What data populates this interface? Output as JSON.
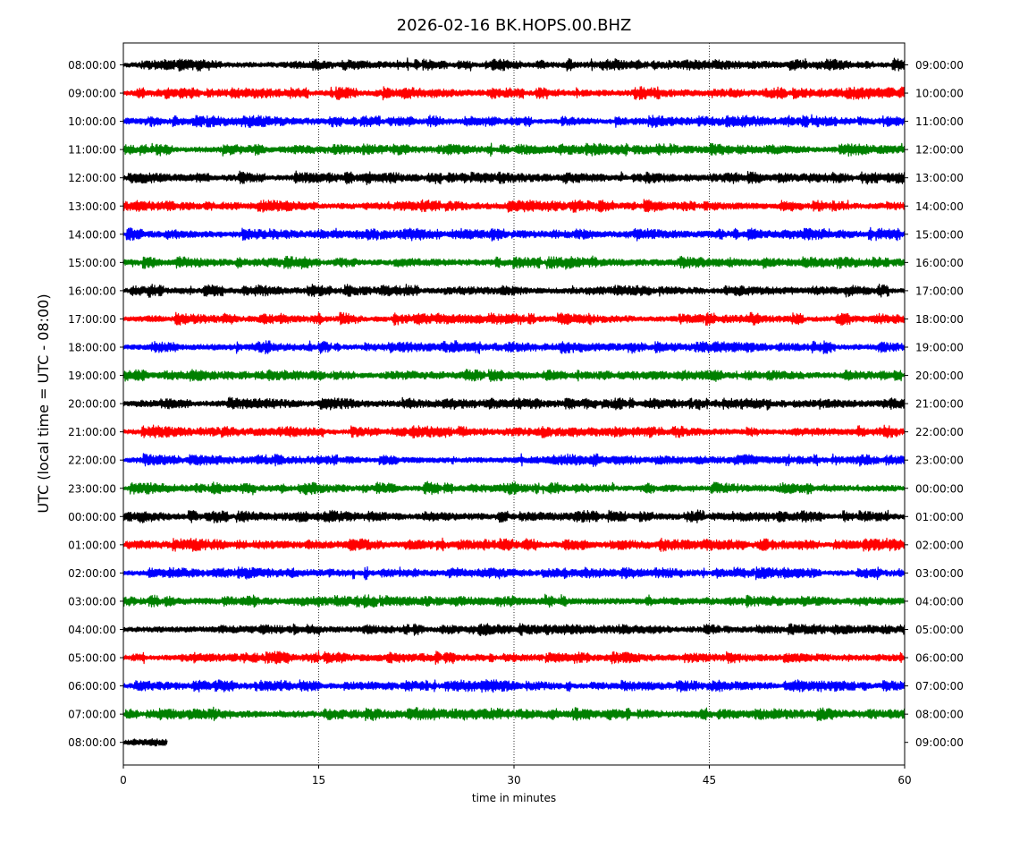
{
  "chart_data": {
    "type": "line",
    "title": "2026-02-16 BK.HOPS.00.BHZ",
    "xlabel": "time in minutes",
    "ylabel": "UTC (local time = UTC - 08:00)",
    "xlim": [
      0,
      60
    ],
    "x_ticks": [
      "0",
      "15",
      "30",
      "45",
      "60"
    ],
    "x_tick_values": [
      0,
      15,
      30,
      45,
      60
    ],
    "grid": "vertical dotted lines at 15, 30, 45",
    "color_cycle": [
      "#000000",
      "#ff0000",
      "#0000ff",
      "#008000"
    ],
    "rows": [
      {
        "left": "08:00:00",
        "right": "09:00:00",
        "minutes": 60
      },
      {
        "left": "09:00:00",
        "right": "10:00:00",
        "minutes": 60
      },
      {
        "left": "10:00:00",
        "right": "11:00:00",
        "minutes": 60
      },
      {
        "left": "11:00:00",
        "right": "12:00:00",
        "minutes": 60
      },
      {
        "left": "12:00:00",
        "right": "13:00:00",
        "minutes": 60
      },
      {
        "left": "13:00:00",
        "right": "14:00:00",
        "minutes": 60
      },
      {
        "left": "14:00:00",
        "right": "15:00:00",
        "minutes": 60
      },
      {
        "left": "15:00:00",
        "right": "16:00:00",
        "minutes": 60
      },
      {
        "left": "16:00:00",
        "right": "17:00:00",
        "minutes": 60
      },
      {
        "left": "17:00:00",
        "right": "18:00:00",
        "minutes": 60
      },
      {
        "left": "18:00:00",
        "right": "19:00:00",
        "minutes": 60
      },
      {
        "left": "19:00:00",
        "right": "20:00:00",
        "minutes": 60
      },
      {
        "left": "20:00:00",
        "right": "21:00:00",
        "minutes": 60
      },
      {
        "left": "21:00:00",
        "right": "22:00:00",
        "minutes": 60
      },
      {
        "left": "22:00:00",
        "right": "23:00:00",
        "minutes": 60
      },
      {
        "left": "23:00:00",
        "right": "00:00:00",
        "minutes": 60
      },
      {
        "left": "00:00:00",
        "right": "01:00:00",
        "minutes": 60
      },
      {
        "left": "01:00:00",
        "right": "02:00:00",
        "minutes": 60
      },
      {
        "left": "02:00:00",
        "right": "03:00:00",
        "minutes": 60
      },
      {
        "left": "03:00:00",
        "right": "04:00:00",
        "minutes": 60
      },
      {
        "left": "04:00:00",
        "right": "05:00:00",
        "minutes": 60
      },
      {
        "left": "05:00:00",
        "right": "06:00:00",
        "minutes": 60
      },
      {
        "left": "06:00:00",
        "right": "07:00:00",
        "minutes": 60
      },
      {
        "left": "07:00:00",
        "right": "08:00:00",
        "minutes": 60
      },
      {
        "left": "08:00:00",
        "right": "09:00:00",
        "minutes": 3.4
      }
    ]
  }
}
